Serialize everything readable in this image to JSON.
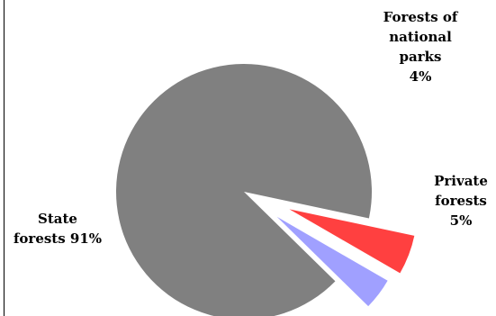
{
  "chart_data": {
    "type": "pie",
    "exploded": true,
    "slices": [
      {
        "label_lines": [
          "State",
          "forests 91%"
        ],
        "value": 91,
        "color": "#808080"
      },
      {
        "label_lines": [
          "Forests of",
          "national",
          "parks",
          "4%"
        ],
        "value": 4,
        "color": "#a0a0ff"
      },
      {
        "label_lines": [
          "Private",
          "forests",
          "5%"
        ],
        "value": 5,
        "color": "#ff4040"
      }
    ]
  }
}
